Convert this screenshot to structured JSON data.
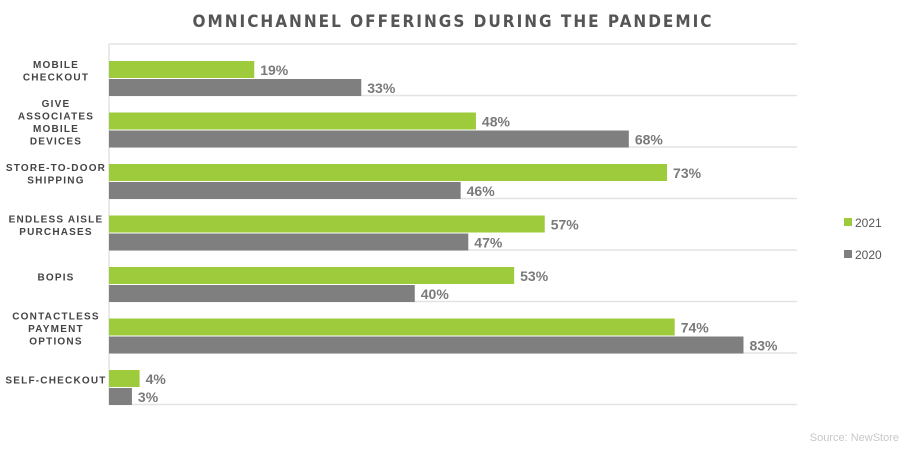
{
  "chart_data": {
    "type": "bar",
    "orientation": "horizontal",
    "title": "OMNICHANNEL OFFERINGS DURING THE PANDEMIC",
    "categories": [
      [
        "MOBILE",
        "CHECKOUT"
      ],
      [
        "GIVE",
        "ASSOCIATES",
        "MOBILE",
        "DEVICES"
      ],
      [
        "STORE-TO-DOOR",
        "SHIPPING"
      ],
      [
        "ENDLESS AISLE",
        "PURCHASES"
      ],
      [
        "BOPIS"
      ],
      [
        "CONTACTLESS",
        "PAYMENT",
        "OPTIONS"
      ],
      [
        "SELF-CHECKOUT"
      ]
    ],
    "series": [
      {
        "name": "2021",
        "color": "#9dcb3b",
        "values": [
          19,
          48,
          73,
          57,
          53,
          74,
          4
        ],
        "labels": [
          "19%",
          "48%",
          "73%",
          "57%",
          "53%",
          "74%",
          "4%"
        ]
      },
      {
        "name": "2020",
        "color": "#7f7f7f",
        "values": [
          33,
          68,
          46,
          47,
          40,
          83,
          3
        ],
        "labels": [
          "33%",
          "68%",
          "46%",
          "47%",
          "40%",
          "83%",
          "3%"
        ]
      }
    ],
    "xlim": [
      0,
      90
    ],
    "grid": true,
    "legend_position": "right",
    "source": "Source: NewStore"
  }
}
